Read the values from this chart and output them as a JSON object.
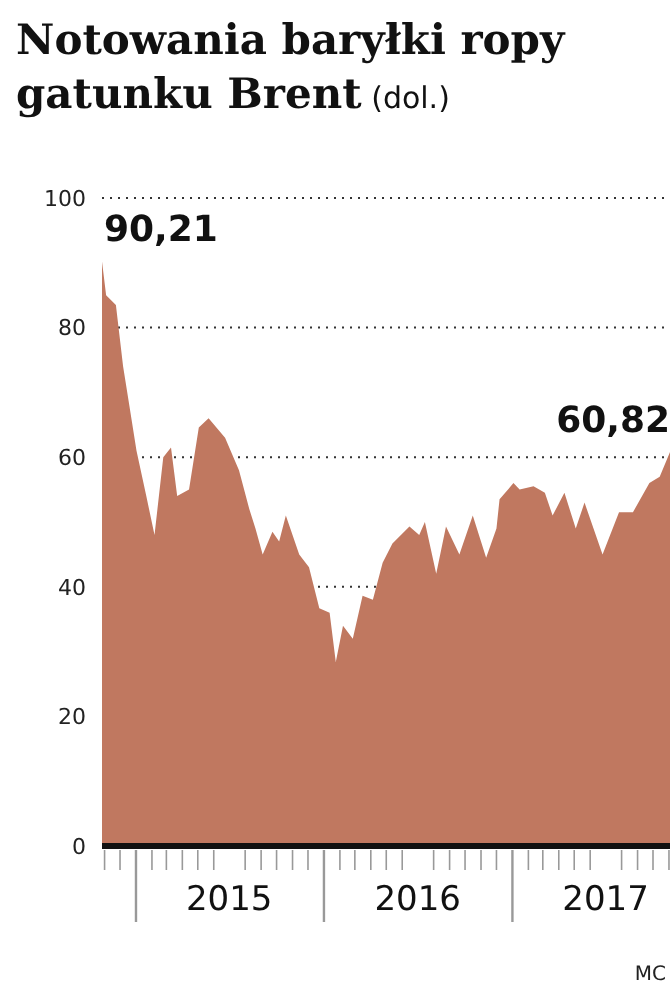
{
  "chart_data": {
    "type": "area",
    "title": "Notowania baryłki ropy gatunku Brent",
    "subtitle": "(dol.)",
    "x": [
      "2014-10-27",
      "2014-11-04",
      "2014-11-23",
      "2014-12-07",
      "2014-12-19",
      "2015-01-02",
      "2015-01-21",
      "2015-02-06",
      "2015-02-23",
      "2015-03-10",
      "2015-03-22",
      "2015-04-14",
      "2015-05-03",
      "2015-05-22",
      "2015-06-23",
      "2015-07-20",
      "2015-08-09",
      "2015-08-21",
      "2015-09-04",
      "2015-09-23",
      "2015-10-06",
      "2015-10-19",
      "2015-11-14",
      "2015-12-03",
      "2015-12-23",
      "2016-01-12",
      "2016-01-24",
      "2016-02-07",
      "2016-02-26",
      "2016-03-16",
      "2016-04-05",
      "2016-04-24",
      "2016-05-13",
      "2016-06-15",
      "2016-07-04",
      "2016-07-15",
      "2016-08-06",
      "2016-08-25",
      "2016-09-20",
      "2016-10-16",
      "2016-11-11",
      "2016-12-01",
      "2016-12-07",
      "2017-01-03",
      "2017-01-15",
      "2017-02-11",
      "2017-03-05",
      "2017-03-20",
      "2017-04-12",
      "2017-05-04",
      "2017-05-21",
      "2017-06-25",
      "2017-07-27",
      "2017-08-23",
      "2017-09-24",
      "2017-10-14",
      "2017-11-03"
    ],
    "series": [
      {
        "color": "#c07860",
        "values": [
          90.21,
          85,
          83.5,
          74,
          68,
          61,
          54,
          48,
          60,
          61.5,
          54,
          55,
          64.6,
          66,
          63,
          58,
          52,
          49,
          45,
          48.5,
          47,
          51,
          45,
          43,
          36.7,
          36,
          28.4,
          34,
          32,
          38.6,
          38,
          43.7,
          46.7,
          49.3,
          48,
          50,
          42,
          49.3,
          45,
          51,
          44.5,
          49,
          53.5,
          56,
          55,
          55.5,
          54.5,
          51,
          54.5,
          49,
          53,
          45,
          51.5,
          51.5,
          56,
          57,
          60.82
        ]
      }
    ],
    "xlim": [
      "2014-10-27",
      "2017-11-03"
    ],
    "xticks": [
      {
        "value": "2014-11-01",
        "label": null
      },
      {
        "value": "2014-12-01",
        "label": null
      },
      {
        "value": "2015-01-01",
        "label": null
      },
      {
        "value": "2015-02-01",
        "label": null
      },
      {
        "value": "2015-03-01",
        "label": null
      },
      {
        "value": "2015-04-01",
        "label": null
      },
      {
        "value": "2015-05-01",
        "label": null
      },
      {
        "value": "2015-06-01",
        "label": null
      },
      {
        "value": "2015-07-01",
        "label": "2015"
      },
      {
        "value": "2015-08-01",
        "label": null
      },
      {
        "value": "2015-09-01",
        "label": null
      },
      {
        "value": "2015-10-01",
        "label": null
      },
      {
        "value": "2015-11-01",
        "label": null
      },
      {
        "value": "2015-12-01",
        "label": null
      },
      {
        "value": "2016-01-01",
        "label": null
      },
      {
        "value": "2016-02-01",
        "label": null
      },
      {
        "value": "2016-03-01",
        "label": null
      },
      {
        "value": "2016-04-01",
        "label": null
      },
      {
        "value": "2016-05-01",
        "label": null
      },
      {
        "value": "2016-06-01",
        "label": null
      },
      {
        "value": "2016-07-01",
        "label": "2016"
      },
      {
        "value": "2016-08-01",
        "label": null
      },
      {
        "value": "2016-09-01",
        "label": null
      },
      {
        "value": "2016-10-01",
        "label": null
      },
      {
        "value": "2016-11-01",
        "label": null
      },
      {
        "value": "2016-12-01",
        "label": null
      },
      {
        "value": "2017-01-01",
        "label": null
      },
      {
        "value": "2017-02-01",
        "label": null
      },
      {
        "value": "2017-03-01",
        "label": null
      },
      {
        "value": "2017-04-01",
        "label": null
      },
      {
        "value": "2017-05-01",
        "label": null
      },
      {
        "value": "2017-06-01",
        "label": null
      },
      {
        "value": "2017-07-01",
        "label": "2017"
      },
      {
        "value": "2017-08-01",
        "label": null
      },
      {
        "value": "2017-09-01",
        "label": null
      },
      {
        "value": "2017-10-01",
        "label": null
      },
      {
        "value": "2017-11-01",
        "label": null
      }
    ],
    "ylim": [
      0,
      100
    ],
    "yticks": [
      0,
      20,
      40,
      60,
      80,
      100
    ],
    "grid": "y",
    "annotations": [
      {
        "text": "90,21",
        "x": "2014-10-27",
        "y": 90.21
      },
      {
        "text": "60,82",
        "x": "2017-11-03",
        "y": 60.82
      },
      "MC"
    ]
  }
}
